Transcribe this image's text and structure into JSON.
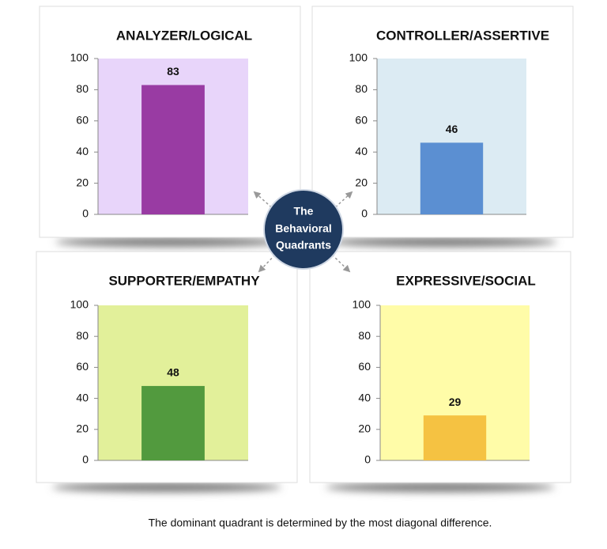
{
  "chart_data": [
    {
      "type": "bar",
      "title": "ANALYZER/LOGICAL",
      "categories": [
        null
      ],
      "values": [
        83
      ],
      "color": "#993ba3",
      "plot_background": "#e8d5fa",
      "ylim": [
        0,
        100
      ],
      "yticks": [
        0,
        20,
        40,
        60,
        80,
        100
      ]
    },
    {
      "type": "bar",
      "title": "CONTROLLER/ASSERTIVE",
      "categories": [
        null
      ],
      "values": [
        46
      ],
      "color": "#5b8fd2",
      "plot_background": "#dcebf3",
      "ylim": [
        0,
        100
      ],
      "yticks": [
        0,
        20,
        40,
        60,
        80,
        100
      ]
    },
    {
      "type": "bar",
      "title": "SUPPORTER/EMPATHY",
      "categories": [
        null
      ],
      "values": [
        48
      ],
      "color": "#529a3e",
      "plot_background": "#e2f09a",
      "ylim": [
        0,
        100
      ],
      "yticks": [
        0,
        20,
        40,
        60,
        80,
        100
      ]
    },
    {
      "type": "bar",
      "title": "EXPRESSIVE/SOCIAL",
      "categories": [
        null
      ],
      "values": [
        29
      ],
      "color": "#f5c242",
      "plot_background": "#fffca8",
      "ylim": [
        0,
        100
      ],
      "yticks": [
        0,
        20,
        40,
        60,
        80,
        100
      ]
    }
  ],
  "center_label": [
    "The",
    "Behavioral",
    "Quadrants"
  ],
  "caption": "The dominant quadrant is determined by the most diagonal difference."
}
